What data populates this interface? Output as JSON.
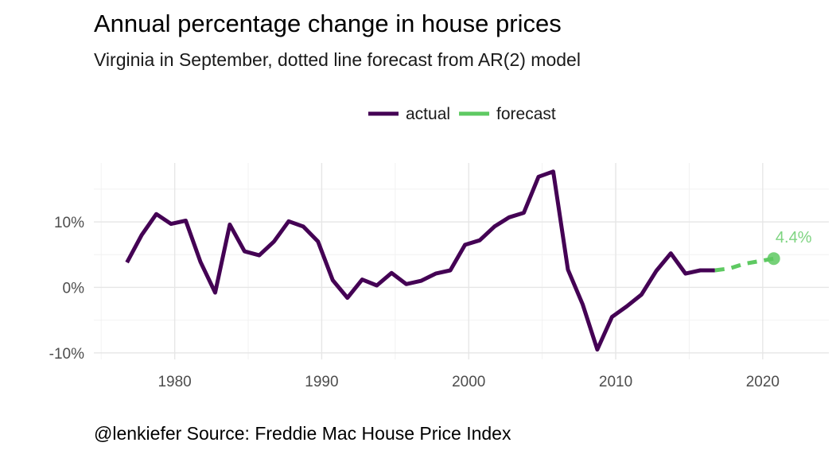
{
  "chart_data": {
    "type": "line",
    "title": "Annual percentage change in house prices",
    "subtitle": "Virginia in September, dotted line forecast from AR(2) model",
    "caption": "@lenkiefer Source: Freddie Mac House Price Index",
    "legend": {
      "placement": "top-center",
      "entries": [
        "actual",
        "forecast"
      ]
    },
    "grid": true,
    "xlim": [
      1974.5,
      2024.5
    ],
    "ylim": [
      -11,
      19
    ],
    "x_ticks": [
      1980,
      1990,
      2000,
      2010,
      2020
    ],
    "x_tick_labels": [
      "1980",
      "1990",
      "2000",
      "2010",
      "2020"
    ],
    "y_ticks": [
      -10,
      0,
      10
    ],
    "y_tick_labels": [
      "-10%",
      "0%",
      "10%"
    ],
    "series": [
      {
        "name": "actual",
        "color": "#440154",
        "style": "solid",
        "x": [
          1976.75,
          1977.75,
          1978.75,
          1979.75,
          1980.75,
          1981.75,
          1982.75,
          1983.75,
          1984.75,
          1985.75,
          1986.75,
          1987.75,
          1988.75,
          1989.75,
          1990.75,
          1991.75,
          1992.75,
          1993.75,
          1994.75,
          1995.75,
          1996.75,
          1997.75,
          1998.75,
          1999.75,
          2000.75,
          2001.75,
          2002.75,
          2003.75,
          2004.75,
          2005.75,
          2006.75,
          2007.75,
          2008.75,
          2009.75,
          2010.75,
          2011.75,
          2012.75,
          2013.75,
          2014.75,
          2015.75,
          2016.75
        ],
        "values": [
          3.8,
          8.0,
          11.2,
          9.7,
          10.2,
          3.9,
          -0.8,
          9.6,
          5.5,
          4.9,
          7.0,
          10.1,
          9.3,
          7.0,
          1.1,
          -1.6,
          1.2,
          0.3,
          2.2,
          0.5,
          1.0,
          2.1,
          2.6,
          6.5,
          7.2,
          9.3,
          10.7,
          11.4,
          16.9,
          17.7,
          2.7,
          -2.6,
          -9.5,
          -4.5,
          -2.9,
          -1.1,
          2.5,
          5.2,
          2.1,
          2.6,
          2.6
        ]
      },
      {
        "name": "forecast",
        "color": "#5ec962",
        "style": "dashed",
        "x": [
          2016.75,
          2017.75,
          2018.75,
          2019.75,
          2020.75
        ],
        "values": [
          2.6,
          2.9,
          3.6,
          4.0,
          4.4
        ]
      }
    ],
    "annotation": {
      "x": 2020.75,
      "y": 4.4,
      "label": "4.4%",
      "color": "#5ec962"
    }
  }
}
